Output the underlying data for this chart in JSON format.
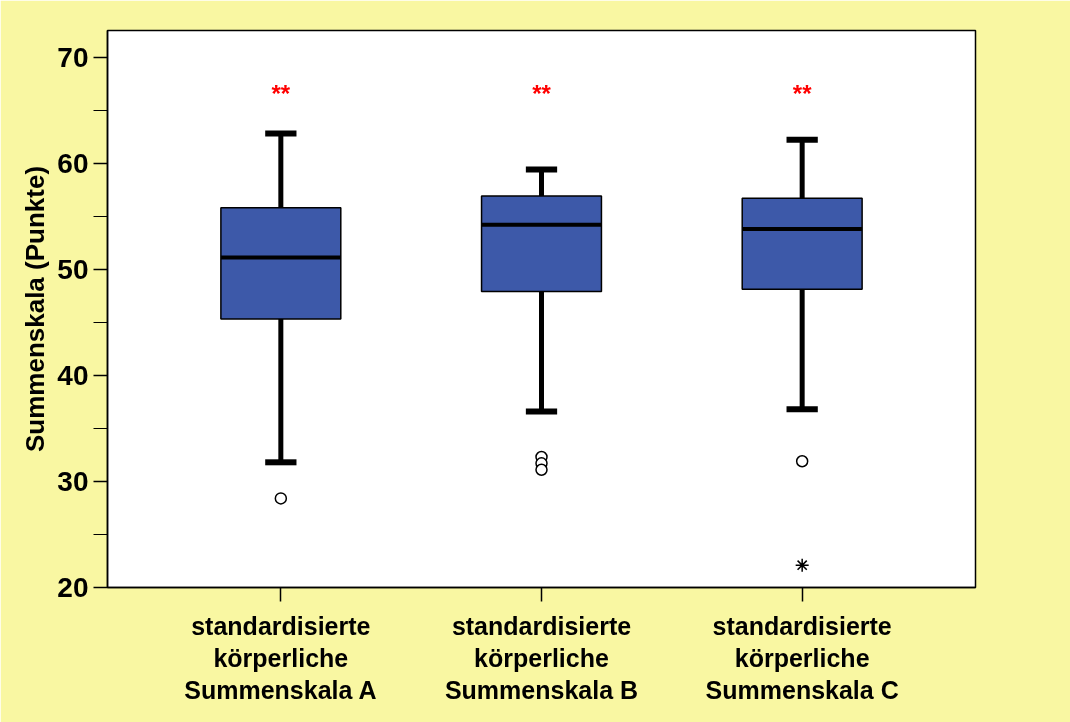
{
  "chart_data": {
    "type": "box",
    "ylabel": "Summenskala (Punkte)",
    "categories": [
      "standardisierte körperliche Summenskala A",
      "standardisierte körperliche Summenskala B",
      "standardisierte körperliche Summenskala C"
    ],
    "ylim": [
      20,
      72.5
    ],
    "yticks": [
      20,
      {
        "value": 25,
        "label": null
      },
      30,
      {
        "value": 35,
        "label": null
      },
      40,
      {
        "value": 45,
        "label": null
      },
      50,
      {
        "value": 55,
        "label": null
      },
      60,
      {
        "value": 65,
        "label": null
      },
      70
    ],
    "series": [
      {
        "color": "#3d59a9",
        "boxes": [
          {
            "low": 31.8,
            "q1": 45.3,
            "median": 51.1,
            "q3": 55.8,
            "high": 62.8,
            "outliers": [
              28.4
            ]
          },
          {
            "low": 36.6,
            "q1": 47.9,
            "median": 54.2,
            "q3": 56.9,
            "high": 59.4,
            "outliers": [
              32.3,
              31.7,
              31.1
            ]
          },
          {
            "low": 36.8,
            "q1": 48.1,
            "median": 53.8,
            "q3": 56.7,
            "high": 62.2,
            "outliers": [
              31.9
            ]
          }
        ]
      },
      {
        "type": "scatter",
        "marker": "cross",
        "color": "#000000",
        "x": [
          "standardisierte körperliche Summenskala C"
        ],
        "values": [
          22.1
        ]
      }
    ],
    "annotations": [
      "**",
      "**",
      "**"
    ],
    "grid": false
  }
}
